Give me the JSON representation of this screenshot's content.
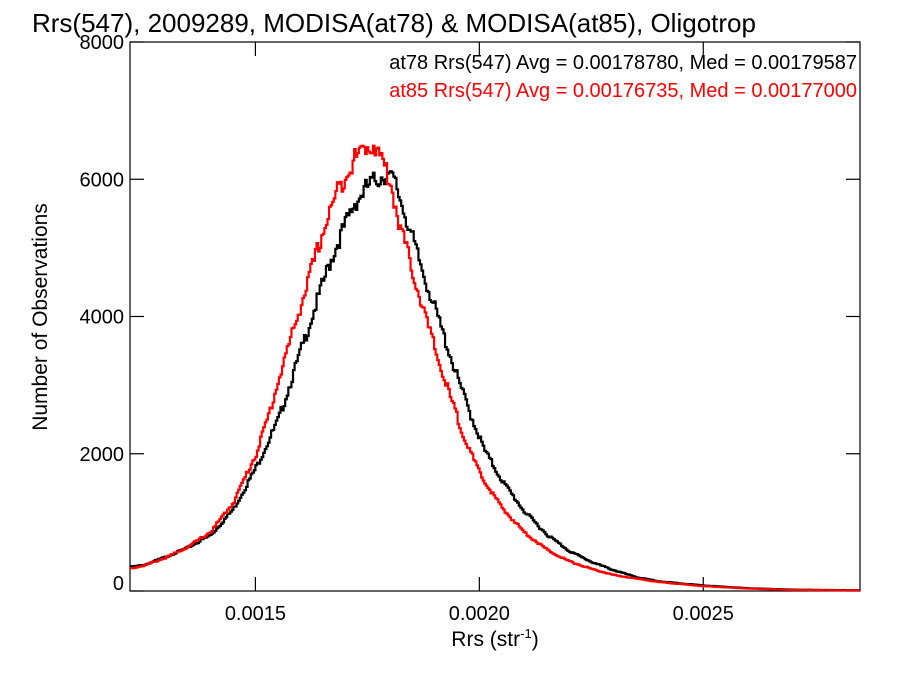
{
  "chart_data": {
    "type": "line",
    "title": "Rrs(547), 2009289, MODISA(at78) & MODISA(at85), Oligotrop",
    "xlabel": "Rrs (str",
    "xlabel_sup": "-1",
    "xlabel_close": ")",
    "ylabel": "Number of Observations",
    "xlim": [
      0.00122,
      0.00285
    ],
    "ylim": [
      0,
      8000
    ],
    "x_ticks": [
      {
        "value": 0.0015,
        "label": "0.0015"
      },
      {
        "value": 0.002,
        "label": "0.0020"
      },
      {
        "value": 0.0025,
        "label": "0.0025"
      }
    ],
    "y_ticks": [
      {
        "value": 0,
        "label": "0"
      },
      {
        "value": 2000,
        "label": "2000"
      },
      {
        "value": 4000,
        "label": "4000"
      },
      {
        "value": 6000,
        "label": "6000"
      },
      {
        "value": 8000,
        "label": "8000"
      }
    ],
    "annotations": [
      {
        "text": "at78 Rrs(547) Avg = 0.00178780, Med = 0.00179587",
        "color": "#000000"
      },
      {
        "text": "at85 Rrs(547) Avg = 0.00176735, Med = 0.00177000",
        "color": "#ff0000"
      }
    ],
    "series": [
      {
        "color": "#000000",
        "x": [
          0.00122,
          0.00125,
          0.0013,
          0.00135,
          0.0014,
          0.00145,
          0.0015,
          0.00155,
          0.0016,
          0.00163,
          0.00166,
          0.00169,
          0.00172,
          0.00175,
          0.00177,
          0.00179,
          0.00181,
          0.00183,
          0.00186,
          0.00189,
          0.00192,
          0.00195,
          0.00198,
          0.00201,
          0.00205,
          0.0021,
          0.00215,
          0.0022,
          0.00225,
          0.0023,
          0.00235,
          0.0024,
          0.0025,
          0.0026,
          0.0027,
          0.00285
        ],
        "y": [
          350,
          380,
          500,
          640,
          820,
          1200,
          1800,
          2500,
          3500,
          4100,
          4700,
          5200,
          5650,
          5900,
          6000,
          6080,
          5950,
          5550,
          4900,
          4300,
          3700,
          3100,
          2550,
          2050,
          1600,
          1150,
          820,
          580,
          420,
          300,
          200,
          140,
          80,
          40,
          20,
          10
        ]
      },
      {
        "color": "#ff0000",
        "x": [
          0.00122,
          0.00125,
          0.0013,
          0.00135,
          0.0014,
          0.00145,
          0.0015,
          0.00153,
          0.00156,
          0.00159,
          0.00162,
          0.00165,
          0.00168,
          0.00171,
          0.00174,
          0.00176,
          0.00178,
          0.0018,
          0.00182,
          0.00185,
          0.00188,
          0.00191,
          0.00194,
          0.00197,
          0.002,
          0.00205,
          0.0021,
          0.00215,
          0.0022,
          0.00225,
          0.0023,
          0.0024,
          0.0025,
          0.0026,
          0.0027,
          0.00285
        ],
        "y": [
          330,
          370,
          490,
          650,
          870,
          1300,
          2000,
          2600,
          3300,
          3950,
          4600,
          5250,
          5800,
          6200,
          6450,
          6520,
          6300,
          5950,
          5350,
          4650,
          3950,
          3300,
          2700,
          2150,
          1700,
          1200,
          850,
          600,
          430,
          320,
          230,
          130,
          70,
          35,
          15,
          8
        ]
      }
    ]
  }
}
